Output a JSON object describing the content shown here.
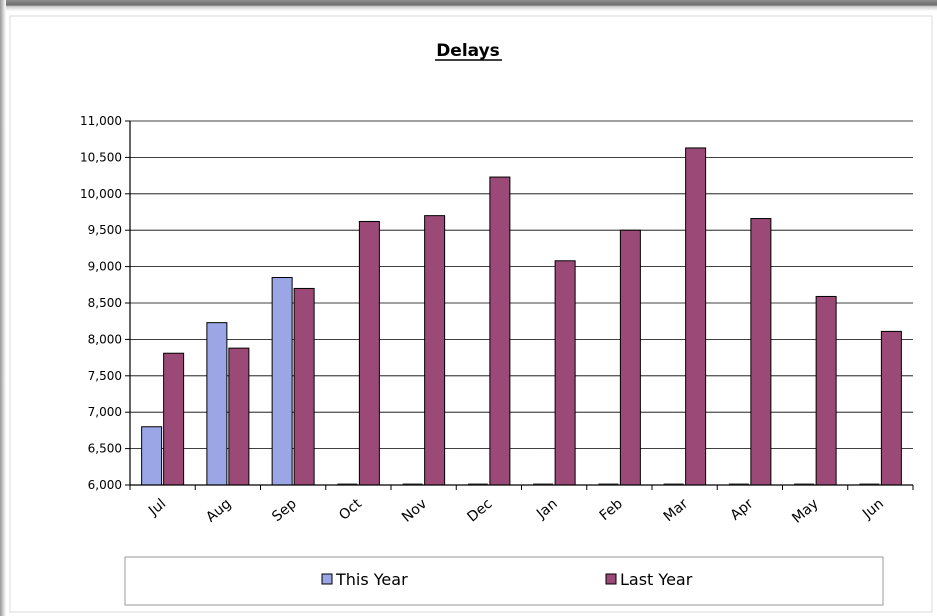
{
  "chart_data": {
    "type": "bar",
    "title": "Delays",
    "categories": [
      "Jul",
      "Aug",
      "Sep",
      "Oct",
      "Nov",
      "Dec",
      "Jan",
      "Feb",
      "Mar",
      "Apr",
      "May",
      "Jun"
    ],
    "series": [
      {
        "name": "This Year",
        "color": "#9aa6e6",
        "values": [
          6800,
          8230,
          8850,
          null,
          null,
          null,
          null,
          null,
          null,
          null,
          null,
          null
        ]
      },
      {
        "name": "Last Year",
        "color": "#9b4a78",
        "values": [
          7810,
          7880,
          8700,
          9620,
          9700,
          10230,
          9080,
          9500,
          10630,
          9660,
          8590,
          8110
        ]
      }
    ],
    "ylim": [
      6000,
      11000
    ],
    "yticks": [
      "6,000",
      "6,500",
      "7,000",
      "7,500",
      "8,000",
      "8,500",
      "9,000",
      "9,500",
      "10,000",
      "10,500",
      "11,000"
    ],
    "ytick_values": [
      6000,
      6500,
      7000,
      7500,
      8000,
      8500,
      9000,
      9500,
      10000,
      10500,
      11000
    ],
    "grid": true,
    "legend_position": "bottom"
  }
}
